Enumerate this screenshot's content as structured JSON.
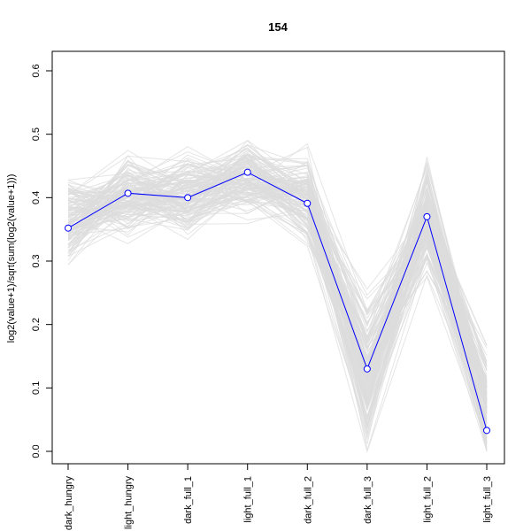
{
  "chart_data": {
    "type": "line",
    "title": "154",
    "xlabel": "",
    "ylabel": "log2(value+1)/sqrt(sum(log2(value+1)))",
    "categories": [
      "dark_hungry",
      "light_hungry",
      "dark_full_1",
      "light_full_1",
      "dark_full_2",
      "dark_full_3",
      "light_full_2",
      "light_full_3"
    ],
    "ylim": [
      -0.02,
      0.62
    ],
    "yticks": [
      "0.0",
      "0.1",
      "0.2",
      "0.3",
      "0.4",
      "0.5",
      "0.6"
    ],
    "grid": false,
    "highlight_series": {
      "values": [
        0.352,
        0.407,
        0.4,
        0.44,
        0.391,
        0.13,
        0.37,
        0.033
      ],
      "color": "#0000ff"
    },
    "background_series_color": "#dcdcdc"
  }
}
